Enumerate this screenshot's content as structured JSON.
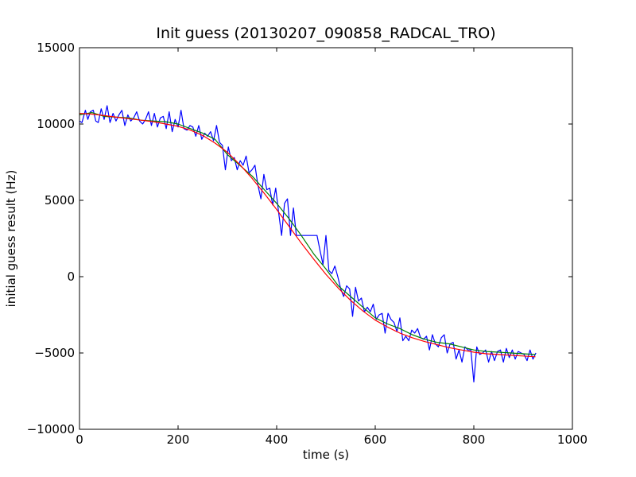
{
  "chart_data": {
    "type": "line",
    "title": "Init guess (20130207_090858_RADCAL_TRO)",
    "xlabel": "time (s)",
    "ylabel": "initial guess result (Hz)",
    "xlim": [
      0,
      1000
    ],
    "ylim": [
      -10000,
      15000
    ],
    "xticks": [
      0,
      200,
      400,
      600,
      800,
      1000
    ],
    "yticks": [
      -10000,
      -5000,
      0,
      5000,
      10000,
      15000
    ],
    "xtick_labels": [
      "0",
      "200",
      "400",
      "600",
      "800",
      "1000"
    ],
    "ytick_labels": [
      "−10000",
      "−5000",
      "0",
      "5000",
      "10000",
      "15000"
    ],
    "grid": false,
    "legend": "none",
    "series": [
      {
        "color": "#0000ff",
        "x": [
          0,
          5,
          12,
          17,
          22,
          28,
          33,
          38,
          44,
          50,
          56,
          62,
          68,
          74,
          80,
          86,
          92,
          98,
          104,
          110,
          116,
          122,
          128,
          134,
          140,
          146,
          152,
          158,
          164,
          170,
          176,
          182,
          188,
          194,
          200,
          206,
          212,
          218,
          224,
          230,
          236,
          242,
          248,
          254,
          260,
          266,
          272,
          278,
          284,
          290,
          296,
          302,
          308,
          314,
          320,
          326,
          332,
          338,
          344,
          350,
          356,
          362,
          368,
          374,
          380,
          386,
          392,
          398,
          404,
          410,
          416,
          422,
          428,
          434,
          440,
          446,
          452,
          458,
          464,
          470,
          476,
          482,
          488,
          494,
          500,
          506,
          512,
          518,
          524,
          530,
          536,
          542,
          548,
          554,
          560,
          566,
          572,
          578,
          584,
          590,
          596,
          602,
          608,
          614,
          620,
          626,
          632,
          638,
          644,
          650,
          656,
          662,
          668,
          674,
          680,
          686,
          692,
          698,
          704,
          710,
          716,
          722,
          728,
          734,
          740,
          746,
          752,
          758,
          764,
          770,
          776,
          782,
          788,
          794,
          800,
          806,
          812,
          818,
          824,
          830,
          836,
          842,
          848,
          854,
          860,
          866,
          872,
          878,
          884,
          890,
          896,
          902,
          908,
          914,
          920,
          926
        ],
        "y": [
          10200,
          10100,
          10900,
          10300,
          10800,
          10900,
          10200,
          10100,
          11000,
          10300,
          11200,
          10100,
          10700,
          10200,
          10600,
          10900,
          9900,
          10600,
          10200,
          10400,
          10800,
          10200,
          10000,
          10300,
          10800,
          9900,
          10700,
          9800,
          10400,
          10500,
          9700,
          10800,
          9500,
          10300,
          9800,
          10900,
          9700,
          9600,
          9900,
          9800,
          9200,
          9900,
          9000,
          9400,
          9200,
          9500,
          8900,
          9900,
          8800,
          8600,
          7000,
          8500,
          7600,
          7800,
          7000,
          7600,
          7300,
          7900,
          6800,
          7000,
          7300,
          6000,
          5100,
          6700,
          5700,
          5800,
          4700,
          5800,
          4200,
          2700,
          4800,
          5100,
          2700,
          4500,
          2700,
          2700,
          2700,
          2700,
          2700,
          2700,
          2700,
          2700,
          1700,
          800,
          2700,
          400,
          200,
          700,
          0,
          -800,
          -1300,
          -600,
          -800,
          -2600,
          -700,
          -1600,
          -1400,
          -2300,
          -2000,
          -2300,
          -1800,
          -2800,
          -2500,
          -2400,
          -3700,
          -2400,
          -2800,
          -3000,
          -3600,
          -2700,
          -4200,
          -3900,
          -4200,
          -3500,
          -3700,
          -3400,
          -4000,
          -4100,
          -3900,
          -4800,
          -3800,
          -4400,
          -4600,
          -4000,
          -3800,
          -5000,
          -4400,
          -4300,
          -5400,
          -4800,
          -5600,
          -4600,
          -4800,
          -4800,
          -6900,
          -4600,
          -5100,
          -5000,
          -4800,
          -5600,
          -4900,
          -5500,
          -4900,
          -4800,
          -5600,
          -4700,
          -5300,
          -4800,
          -5400,
          -4900,
          -5000,
          -5100,
          -5500,
          -4800,
          -5400,
          -5000
        ]
      },
      {
        "color": "#008000",
        "x": [
          0,
          25,
          50,
          75,
          100,
          125,
          150,
          175,
          200,
          225,
          250,
          275,
          300,
          325,
          350,
          375,
          400,
          425,
          450,
          475,
          500,
          525,
          550,
          575,
          600,
          625,
          650,
          675,
          700,
          725,
          750,
          775,
          800,
          825,
          850,
          875,
          900,
          925
        ],
        "y": [
          10600,
          10750,
          10500,
          10450,
          10400,
          10250,
          10200,
          10150,
          10000,
          9700,
          9400,
          9000,
          8000,
          7300,
          6600,
          5700,
          4800,
          3800,
          2700,
          1500,
          500,
          -600,
          -1300,
          -2000,
          -2700,
          -3100,
          -3400,
          -3800,
          -4100,
          -4300,
          -4400,
          -4600,
          -4800,
          -4900,
          -4950,
          -5000,
          -5050,
          -5100
        ]
      },
      {
        "color": "#ff0000",
        "x": [
          0,
          25,
          50,
          75,
          100,
          125,
          150,
          175,
          200,
          225,
          250,
          275,
          300,
          325,
          350,
          375,
          400,
          425,
          450,
          475,
          500,
          525,
          550,
          575,
          600,
          625,
          650,
          675,
          700,
          725,
          750,
          775,
          800,
          825,
          850,
          875,
          900,
          925
        ],
        "y": [
          10700,
          10650,
          10550,
          10450,
          10350,
          10250,
          10150,
          10000,
          9850,
          9600,
          9250,
          8750,
          8150,
          7350,
          6450,
          5450,
          4400,
          3300,
          2200,
          1150,
          150,
          -750,
          -1550,
          -2250,
          -2850,
          -3300,
          -3700,
          -4000,
          -4250,
          -4450,
          -4650,
          -4800,
          -4950,
          -5050,
          -5100,
          -5150,
          -5200,
          -5250
        ]
      }
    ]
  }
}
